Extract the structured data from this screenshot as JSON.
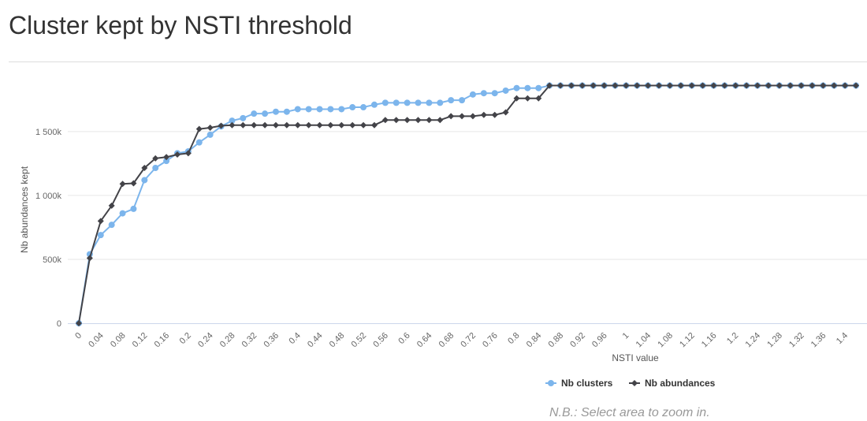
{
  "page": {
    "title": "Cluster kept by NSTI threshold",
    "note": "N.B.: Select area to zoom in."
  },
  "chart_data": {
    "type": "line",
    "xlabel": "NSTI value",
    "ylabel": "Nb abundances kept",
    "ylim": [
      0,
      1900000
    ],
    "yticks": [
      {
        "value": 0,
        "label": "0"
      },
      {
        "value": 500000,
        "label": "500k"
      },
      {
        "value": 1000000,
        "label": "1 000k"
      },
      {
        "value": 1500000,
        "label": "1 500k"
      }
    ],
    "x": [
      0,
      0.02,
      0.04,
      0.06,
      0.08,
      0.1,
      0.12,
      0.14,
      0.16,
      0.18,
      0.2,
      0.22,
      0.24,
      0.26,
      0.28,
      0.3,
      0.32,
      0.34,
      0.36,
      0.38,
      0.4,
      0.42,
      0.44,
      0.46,
      0.48,
      0.5,
      0.52,
      0.54,
      0.56,
      0.58,
      0.6,
      0.62,
      0.64,
      0.66,
      0.68,
      0.7,
      0.72,
      0.74,
      0.76,
      0.78,
      0.8,
      0.82,
      0.84,
      0.86,
      0.88,
      0.9,
      0.92,
      0.94,
      0.96,
      0.98,
      1,
      1.02,
      1.04,
      1.06,
      1.08,
      1.1,
      1.12,
      1.14,
      1.16,
      1.18,
      1.2,
      1.22,
      1.24,
      1.26,
      1.28,
      1.3,
      1.32,
      1.34,
      1.36,
      1.38,
      1.4,
      1.42
    ],
    "xtick_labels": [
      "0",
      "0.04",
      "0.08",
      "0.12",
      "0.16",
      "0.2",
      "0.24",
      "0.28",
      "0.32",
      "0.36",
      "0.4",
      "0.44",
      "0.48",
      "0.52",
      "0.56",
      "0.6",
      "0.64",
      "0.68",
      "0.72",
      "0.76",
      "0.8",
      "0.84",
      "0.88",
      "0.92",
      "0.96",
      "1",
      "1.04",
      "1.08",
      "1.12",
      "1.16",
      "1.2",
      "1.24",
      "1.28",
      "1.32",
      "1.36",
      "1.4"
    ],
    "series": [
      {
        "name": "Nb clusters",
        "color": "#7cb5ec",
        "marker": "circle",
        "values": [
          0,
          540000,
          690000,
          770000,
          860000,
          895000,
          1120000,
          1215000,
          1270000,
          1330000,
          1345000,
          1415000,
          1475000,
          1540000,
          1585000,
          1605000,
          1640000,
          1640000,
          1655000,
          1655000,
          1675000,
          1675000,
          1675000,
          1675000,
          1675000,
          1690000,
          1690000,
          1710000,
          1725000,
          1725000,
          1725000,
          1725000,
          1725000,
          1725000,
          1745000,
          1745000,
          1790000,
          1800000,
          1800000,
          1820000,
          1840000,
          1840000,
          1840000,
          1860000,
          1860000,
          1860000,
          1860000,
          1860000,
          1860000,
          1860000,
          1860000,
          1860000,
          1860000,
          1860000,
          1860000,
          1860000,
          1860000,
          1860000,
          1860000,
          1860000,
          1860000,
          1860000,
          1860000,
          1860000,
          1860000,
          1860000,
          1860000,
          1860000,
          1860000,
          1860000,
          1860000,
          1860000
        ]
      },
      {
        "name": "Nb abundances",
        "color": "#434348",
        "marker": "diamond",
        "values": [
          0,
          510000,
          800000,
          920000,
          1090000,
          1095000,
          1215000,
          1290000,
          1300000,
          1320000,
          1330000,
          1520000,
          1530000,
          1545000,
          1550000,
          1550000,
          1550000,
          1550000,
          1550000,
          1550000,
          1550000,
          1550000,
          1550000,
          1550000,
          1550000,
          1550000,
          1550000,
          1550000,
          1590000,
          1590000,
          1590000,
          1590000,
          1590000,
          1590000,
          1620000,
          1620000,
          1620000,
          1630000,
          1630000,
          1650000,
          1760000,
          1760000,
          1760000,
          1860000,
          1860000,
          1860000,
          1860000,
          1860000,
          1860000,
          1860000,
          1860000,
          1860000,
          1860000,
          1860000,
          1860000,
          1860000,
          1860000,
          1860000,
          1860000,
          1860000,
          1860000,
          1860000,
          1860000,
          1860000,
          1860000,
          1860000,
          1860000,
          1860000,
          1860000,
          1860000,
          1860000,
          1860000
        ]
      }
    ],
    "grid": true,
    "legend_position": "bottom-center",
    "colors": {
      "gridline": "#e6e6e6",
      "axis": "#ccd6eb"
    }
  }
}
